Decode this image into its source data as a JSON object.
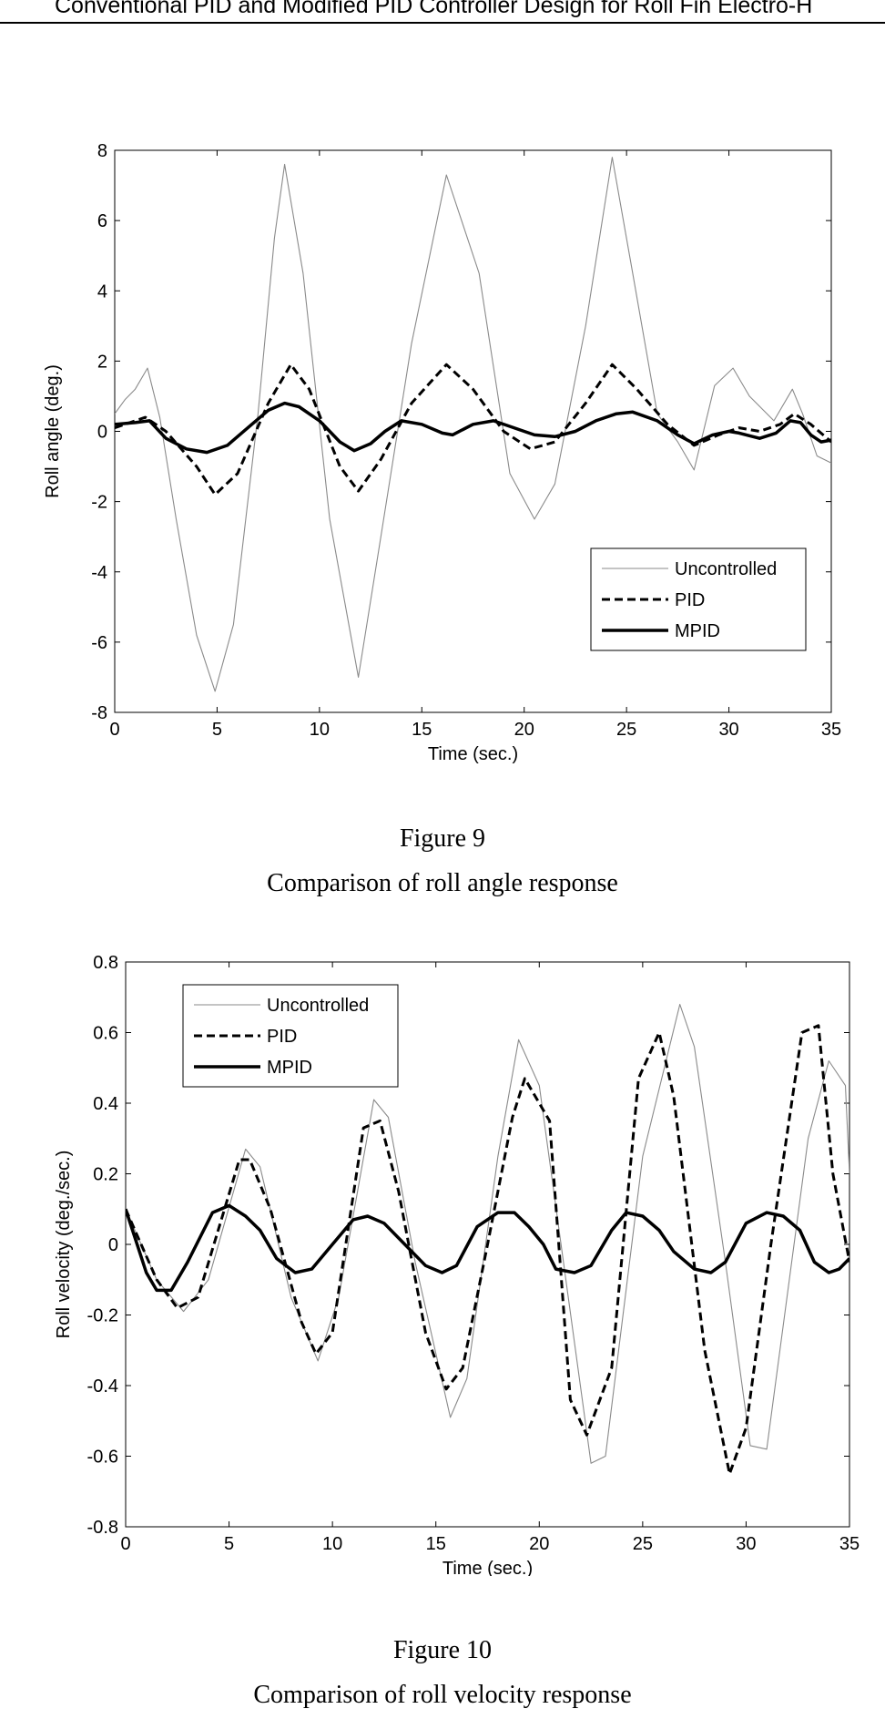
{
  "header": {
    "running_title": "Conventional PID and Modified PID Controller Design for Roll Fin Electro-H"
  },
  "figures": [
    {
      "number": "Figure 9",
      "caption": "Comparison of roll angle response"
    },
    {
      "number": "Figure 10",
      "caption": "Comparison of roll velocity response"
    }
  ],
  "chart_data": [
    {
      "type": "line",
      "xlabel": "Time (sec.)",
      "ylabel": "Roll angle (deg.)",
      "xlim": [
        0,
        35
      ],
      "ylim": [
        -8,
        8
      ],
      "xticks": [
        0,
        5,
        10,
        15,
        20,
        25,
        30,
        35
      ],
      "yticks": [
        -8,
        -6,
        -4,
        -2,
        0,
        2,
        4,
        6,
        8
      ],
      "grid": false,
      "legend_position": "bottom-right",
      "series": [
        {
          "name": "Uncontrolled",
          "style": "thin-gray",
          "x": [
            0,
            0.5,
            1,
            1.6,
            2.2,
            3,
            4,
            4.9,
            5.8,
            7,
            7.8,
            8.3,
            9.2,
            10.5,
            11.9,
            13,
            14.5,
            16.2,
            17.8,
            19.3,
            20.5,
            21.5,
            23,
            24.3,
            25.3,
            26.5,
            27.5,
            28.3,
            29.3,
            30.2,
            31,
            32.2,
            33.1,
            33.6,
            34.3,
            35
          ],
          "y": [
            0.5,
            0.9,
            1.2,
            1.8,
            0.4,
            -2.5,
            -5.8,
            -7.4,
            -5.5,
            0.5,
            5.5,
            7.6,
            4.5,
            -2.5,
            -7.0,
            -3.0,
            2.5,
            7.3,
            4.5,
            -1.2,
            -2.5,
            -1.5,
            3.0,
            7.8,
            4.5,
            0.5,
            -0.3,
            -1.1,
            1.3,
            1.8,
            1.0,
            0.3,
            1.2,
            0.5,
            -0.7,
            -0.9
          ]
        },
        {
          "name": "PID",
          "style": "dashed",
          "x": [
            0,
            1,
            1.5,
            2.5,
            4,
            4.9,
            6,
            7.5,
            8.6,
            9.5,
            11,
            11.9,
            13,
            14.5,
            16.2,
            17.5,
            19,
            20.3,
            21.5,
            23,
            24.3,
            25.5,
            27,
            28.3,
            29.5,
            30.5,
            31.5,
            32.5,
            33.2,
            34,
            35
          ],
          "y": [
            0.1,
            0.3,
            0.4,
            0.0,
            -1.0,
            -1.8,
            -1.2,
            0.8,
            1.9,
            1.2,
            -1.0,
            -1.7,
            -0.8,
            0.8,
            1.9,
            1.2,
            0.0,
            -0.5,
            -0.3,
            0.8,
            1.9,
            1.2,
            0.2,
            -0.4,
            -0.1,
            0.1,
            0.0,
            0.2,
            0.5,
            0.2,
            -0.3
          ]
        },
        {
          "name": "MPID",
          "style": "thick",
          "x": [
            0,
            1,
            1.7,
            2.5,
            3.5,
            4.5,
            5.5,
            6.5,
            7.5,
            8.3,
            9,
            10,
            11,
            11.7,
            12.5,
            13.2,
            14,
            15,
            16,
            16.5,
            17.5,
            18.5,
            19.5,
            20.5,
            21.5,
            22.5,
            23.5,
            24.5,
            25.3,
            26.5,
            27.5,
            28.3,
            29.2,
            30,
            30.5,
            31.5,
            32.3,
            33,
            33.5,
            34,
            34.5,
            35
          ],
          "y": [
            0.2,
            0.25,
            0.3,
            -0.2,
            -0.5,
            -0.6,
            -0.4,
            0.1,
            0.6,
            0.8,
            0.7,
            0.3,
            -0.3,
            -0.55,
            -0.35,
            0.0,
            0.3,
            0.2,
            -0.05,
            -0.1,
            0.2,
            0.3,
            0.1,
            -0.1,
            -0.15,
            0.0,
            0.3,
            0.5,
            0.55,
            0.3,
            -0.1,
            -0.35,
            -0.1,
            0.0,
            -0.05,
            -0.2,
            -0.05,
            0.3,
            0.25,
            -0.1,
            -0.3,
            -0.25
          ]
        }
      ]
    },
    {
      "type": "line",
      "xlabel": "Time (sec.)",
      "ylabel": "Roll velocity (deg./sec.)",
      "xlim": [
        0,
        35
      ],
      "ylim": [
        -0.8,
        0.8
      ],
      "xticks": [
        0,
        5,
        10,
        15,
        20,
        25,
        30,
        35
      ],
      "yticks": [
        -0.8,
        -0.6,
        -0.4,
        -0.2,
        0,
        0.2,
        0.4,
        0.6,
        0.8
      ],
      "ytick_labels": [
        "-0.8",
        "-0.6",
        "-0.4",
        "-0.2",
        "0",
        "0.2",
        "0.4",
        "0.6",
        "0.8"
      ],
      "grid": false,
      "legend_position": "top-left",
      "series": [
        {
          "name": "Uncontrolled",
          "style": "thin-gray",
          "x": [
            0,
            1.5,
            2.8,
            4,
            5.8,
            6.5,
            8,
            9.3,
            10.3,
            12,
            12.7,
            14,
            15.7,
            16.5,
            18,
            19,
            20,
            22.5,
            23.2,
            25,
            26.8,
            27.5,
            29,
            30.2,
            31,
            33,
            34,
            34.8,
            35
          ],
          "y": [
            0.1,
            -0.1,
            -0.19,
            -0.1,
            0.27,
            0.22,
            -0.15,
            -0.33,
            -0.15,
            0.41,
            0.36,
            -0.05,
            -0.49,
            -0.38,
            0.25,
            0.58,
            0.45,
            -0.62,
            -0.6,
            0.25,
            0.68,
            0.56,
            -0.05,
            -0.57,
            -0.58,
            0.3,
            0.52,
            0.45,
            0.2
          ]
        },
        {
          "name": "PID",
          "style": "dashed",
          "x": [
            0,
            1.5,
            2.5,
            3.5,
            5.5,
            6,
            7,
            8.5,
            9.2,
            10,
            11.5,
            12.3,
            13.2,
            14.5,
            15.5,
            16.3,
            17.5,
            18.7,
            19.3,
            20.5,
            21.5,
            22.3,
            23.5,
            24.8,
            25.8,
            26.5,
            28,
            29.2,
            30,
            31.2,
            32.7,
            33.5,
            34.2,
            35
          ],
          "y": [
            0.1,
            -0.1,
            -0.18,
            -0.15,
            0.24,
            0.24,
            0.1,
            -0.22,
            -0.31,
            -0.25,
            0.33,
            0.35,
            0.15,
            -0.25,
            -0.41,
            -0.35,
            0.0,
            0.36,
            0.47,
            0.35,
            -0.44,
            -0.54,
            -0.35,
            0.47,
            0.6,
            0.42,
            -0.3,
            -0.65,
            -0.52,
            0.0,
            0.6,
            0.62,
            0.2,
            -0.05
          ]
        },
        {
          "name": "MPID",
          "style": "thick",
          "x": [
            0,
            1,
            1.5,
            2.2,
            3,
            4.2,
            5,
            5.8,
            6.5,
            7.3,
            8.2,
            9,
            10,
            11,
            11.7,
            12.5,
            13.5,
            14.5,
            15.3,
            16,
            17,
            18,
            18.8,
            19.5,
            20.2,
            20.8,
            21.7,
            22.5,
            23.5,
            24.2,
            25,
            25.8,
            26.5,
            27.5,
            28.3,
            29,
            30,
            31,
            31.8,
            32.6,
            33.3,
            34,
            34.5,
            35
          ],
          "y": [
            0.1,
            -0.08,
            -0.13,
            -0.13,
            -0.05,
            0.09,
            0.11,
            0.08,
            0.04,
            -0.04,
            -0.08,
            -0.07,
            0.0,
            0.07,
            0.08,
            0.06,
            0.0,
            -0.06,
            -0.08,
            -0.06,
            0.05,
            0.09,
            0.09,
            0.05,
            0.0,
            -0.07,
            -0.08,
            -0.06,
            0.04,
            0.09,
            0.08,
            0.04,
            -0.02,
            -0.07,
            -0.08,
            -0.05,
            0.06,
            0.09,
            0.08,
            0.04,
            -0.05,
            -0.08,
            -0.07,
            -0.04
          ]
        }
      ]
    }
  ]
}
